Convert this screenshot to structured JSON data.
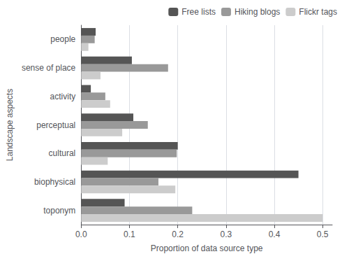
{
  "chart_data": {
    "type": "bar",
    "orientation": "horizontal",
    "categories": [
      "toponym",
      "biophysical",
      "cultural",
      "perceptual",
      "activity",
      "sense of place",
      "people"
    ],
    "series": [
      {
        "name": "Free lists",
        "color": "#555555",
        "values": [
          0.09,
          0.45,
          0.2,
          0.108,
          0.02,
          0.105,
          0.03
        ]
      },
      {
        "name": "Hiking blogs",
        "color": "#999999",
        "values": [
          0.23,
          0.16,
          0.198,
          0.138,
          0.05,
          0.18,
          0.028
        ]
      },
      {
        "name": "Flickr tags",
        "color": "#cccccc",
        "values": [
          0.5,
          0.195,
          0.055,
          0.085,
          0.06,
          0.04,
          0.015
        ]
      }
    ],
    "xlabel": "Proportion of data source type",
    "ylabel": "Landscape aspects",
    "xlim": [
      0,
      0.52
    ],
    "xticks": [
      {
        "value": 0,
        "label": "0.0"
      },
      0.1,
      0.2,
      0.3,
      0.4,
      0.5
    ],
    "grid": true,
    "legend": "upper right"
  }
}
